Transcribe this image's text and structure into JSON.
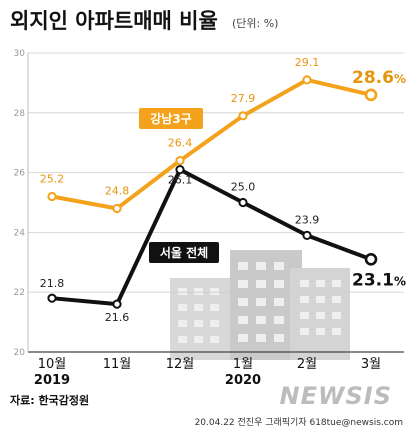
{
  "header": {
    "title": "외지인 아파트매매 비율",
    "unit": "(단위: %)"
  },
  "source": "자료: 한국감정원",
  "credit": "20.04.22 전진우 그래픽기자 618tue@newsis.com",
  "watermark": "NEWSIS",
  "colors": {
    "gangnam": "#f4a21c",
    "seoul": "#111111",
    "grid": "#cfcfcf"
  },
  "chart_data": {
    "type": "line",
    "title": "외지인 아파트매매 비율",
    "subtitle": "(단위: %)",
    "categories": [
      "10월",
      "11월",
      "12월",
      "1월",
      "2월",
      "3월"
    ],
    "years": [
      {
        "label": "2019",
        "index": 0
      },
      {
        "label": "2020",
        "index": 3
      }
    ],
    "yticks": [
      20,
      22,
      24,
      26,
      28,
      30
    ],
    "ylim": [
      20,
      30
    ],
    "grid": true,
    "series": [
      {
        "name": "강남3구",
        "values": [
          25.2,
          24.8,
          26.4,
          27.9,
          29.1,
          28.6
        ],
        "labels": [
          "25.2",
          "24.8",
          "26.4",
          "27.9",
          "29.1",
          "28.6"
        ],
        "last_big": "28.6",
        "last_pct": "%"
      },
      {
        "name": "서울 전체",
        "values": [
          21.8,
          21.6,
          26.1,
          25.0,
          23.9,
          23.1
        ],
        "labels": [
          "21.8",
          "21.6",
          "26.1",
          "25.0",
          "23.9",
          "23.1"
        ],
        "last_big": "23.1",
        "last_pct": "%"
      }
    ]
  }
}
